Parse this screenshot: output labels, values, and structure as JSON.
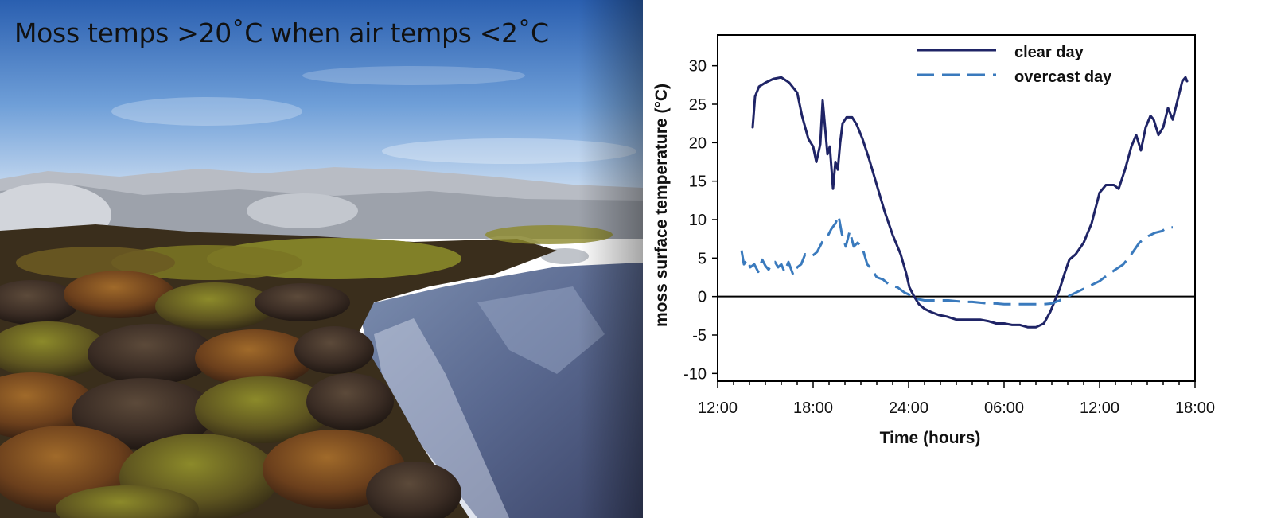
{
  "photo": {
    "caption": "Moss temps >20˚C  when air temps <2˚C"
  },
  "colors": {
    "clear_day": "#1f2466",
    "overcast_day": "#3a7abd",
    "axis": "#000000"
  },
  "chart_data": {
    "type": "line",
    "title": "",
    "xlabel": "Time (hours)",
    "ylabel": "moss surface temperature (°C)",
    "xlim": [
      0,
      30
    ],
    "ylim": [
      -11,
      34
    ],
    "x_ticks": [
      {
        "value": 0,
        "label": "12:00"
      },
      {
        "value": 6,
        "label": "18:00"
      },
      {
        "value": 12,
        "label": "24:00"
      },
      {
        "value": 18,
        "label": "06:00"
      },
      {
        "value": 24,
        "label": "12:00"
      },
      {
        "value": 30,
        "label": "18:00"
      }
    ],
    "y_ticks": [
      -10,
      -5,
      0,
      5,
      10,
      15,
      20,
      25,
      30
    ],
    "legend_position": "top-center",
    "series": [
      {
        "name": "clear day",
        "style": "solid",
        "color": "#1f2466",
        "points": [
          [
            2.2,
            22
          ],
          [
            2.35,
            26
          ],
          [
            2.6,
            27.3
          ],
          [
            3.0,
            27.8
          ],
          [
            3.5,
            28.3
          ],
          [
            4.0,
            28.5
          ],
          [
            4.5,
            27.8
          ],
          [
            5.0,
            26.5
          ],
          [
            5.3,
            23.5
          ],
          [
            5.7,
            20.5
          ],
          [
            6.0,
            19.5
          ],
          [
            6.2,
            17.5
          ],
          [
            6.45,
            19.8
          ],
          [
            6.6,
            25.5
          ],
          [
            6.75,
            22
          ],
          [
            6.9,
            18.5
          ],
          [
            7.05,
            19.5
          ],
          [
            7.25,
            14
          ],
          [
            7.4,
            17.5
          ],
          [
            7.55,
            16.5
          ],
          [
            7.7,
            20
          ],
          [
            7.85,
            22.5
          ],
          [
            8.1,
            23.3
          ],
          [
            8.45,
            23.3
          ],
          [
            8.75,
            22.3
          ],
          [
            9.1,
            20.5
          ],
          [
            9.5,
            18
          ],
          [
            10.0,
            14.5
          ],
          [
            10.5,
            11
          ],
          [
            11.0,
            8
          ],
          [
            11.5,
            5.5
          ],
          [
            11.85,
            3
          ],
          [
            12.05,
            1.2
          ],
          [
            12.35,
            0
          ],
          [
            12.65,
            -1
          ],
          [
            13.0,
            -1.6
          ],
          [
            13.4,
            -2
          ],
          [
            13.9,
            -2.4
          ],
          [
            14.4,
            -2.6
          ],
          [
            15.0,
            -3
          ],
          [
            15.5,
            -3
          ],
          [
            16.0,
            -3
          ],
          [
            16.5,
            -3
          ],
          [
            17.0,
            -3.2
          ],
          [
            17.5,
            -3.5
          ],
          [
            18.0,
            -3.5
          ],
          [
            18.5,
            -3.7
          ],
          [
            19.0,
            -3.7
          ],
          [
            19.5,
            -4
          ],
          [
            20.0,
            -4
          ],
          [
            20.5,
            -3.5
          ],
          [
            20.9,
            -2
          ],
          [
            21.2,
            -0.5
          ],
          [
            21.5,
            1
          ],
          [
            21.8,
            3
          ],
          [
            22.1,
            4.8
          ],
          [
            22.5,
            5.5
          ],
          [
            23.0,
            7
          ],
          [
            23.5,
            9.5
          ],
          [
            24.0,
            13.5
          ],
          [
            24.4,
            14.5
          ],
          [
            24.9,
            14.5
          ],
          [
            25.2,
            14
          ],
          [
            25.6,
            16.5
          ],
          [
            26.0,
            19.5
          ],
          [
            26.3,
            21
          ],
          [
            26.6,
            19
          ],
          [
            26.9,
            22
          ],
          [
            27.2,
            23.5
          ],
          [
            27.4,
            23
          ],
          [
            27.7,
            21
          ],
          [
            28.0,
            22
          ],
          [
            28.3,
            24.5
          ],
          [
            28.6,
            23
          ],
          [
            28.9,
            25.5
          ],
          [
            29.2,
            28
          ],
          [
            29.4,
            28.5
          ],
          [
            29.5,
            28
          ]
        ]
      },
      {
        "name": "overcast day",
        "style": "dashed",
        "color": "#3a7abd",
        "points": [
          [
            1.5,
            6
          ],
          [
            1.65,
            4.2
          ],
          [
            1.85,
            4.8
          ],
          [
            2.05,
            3.8
          ],
          [
            2.3,
            4.2
          ],
          [
            2.55,
            3.2
          ],
          [
            2.8,
            4.8
          ],
          [
            3.0,
            4
          ],
          [
            3.2,
            3.5
          ],
          [
            3.4,
            4.2
          ],
          [
            3.6,
            4.5
          ],
          [
            3.8,
            3.8
          ],
          [
            4.0,
            4.2
          ],
          [
            4.2,
            3.2
          ],
          [
            4.45,
            4.5
          ],
          [
            4.75,
            2.8
          ],
          [
            5.0,
            3.8
          ],
          [
            5.25,
            4.2
          ],
          [
            5.5,
            5.5
          ],
          [
            5.9,
            5.2
          ],
          [
            6.25,
            5.8
          ],
          [
            6.6,
            7.2
          ],
          [
            6.9,
            7.8
          ],
          [
            7.15,
            8.8
          ],
          [
            7.4,
            9.5
          ],
          [
            7.6,
            10.5
          ],
          [
            7.8,
            8.2
          ],
          [
            8.05,
            6.5
          ],
          [
            8.3,
            8.5
          ],
          [
            8.55,
            6.5
          ],
          [
            8.8,
            7
          ],
          [
            9.1,
            6.3
          ],
          [
            9.4,
            4.2
          ],
          [
            9.7,
            3.5
          ],
          [
            10.0,
            2.5
          ],
          [
            10.4,
            2.2
          ],
          [
            10.8,
            1.5
          ],
          [
            11.3,
            1.2
          ],
          [
            11.75,
            0.5
          ],
          [
            12.1,
            0.2
          ],
          [
            12.5,
            -0.3
          ],
          [
            13.0,
            -0.5
          ],
          [
            13.5,
            -0.5
          ],
          [
            14.0,
            -0.5
          ],
          [
            14.5,
            -0.5
          ],
          [
            15.0,
            -0.6
          ],
          [
            15.5,
            -0.7
          ],
          [
            16.0,
            -0.7
          ],
          [
            16.5,
            -0.8
          ],
          [
            17.0,
            -0.9
          ],
          [
            17.5,
            -0.9
          ],
          [
            18.0,
            -1
          ],
          [
            18.5,
            -1
          ],
          [
            19.0,
            -1
          ],
          [
            19.5,
            -1
          ],
          [
            20.0,
            -1
          ],
          [
            20.5,
            -1
          ],
          [
            21.0,
            -0.9
          ],
          [
            21.5,
            -0.5
          ],
          [
            22.0,
            0
          ],
          [
            22.5,
            0.5
          ],
          [
            23.0,
            1
          ],
          [
            23.5,
            1.5
          ],
          [
            24.0,
            2
          ],
          [
            24.5,
            2.8
          ],
          [
            25.0,
            3.5
          ],
          [
            25.5,
            4.2
          ],
          [
            26.0,
            5.5
          ],
          [
            26.5,
            7
          ],
          [
            27.0,
            7.8
          ],
          [
            27.5,
            8.3
          ],
          [
            27.9,
            8.5
          ],
          [
            28.3,
            9
          ],
          [
            28.6,
            9
          ]
        ]
      }
    ]
  }
}
